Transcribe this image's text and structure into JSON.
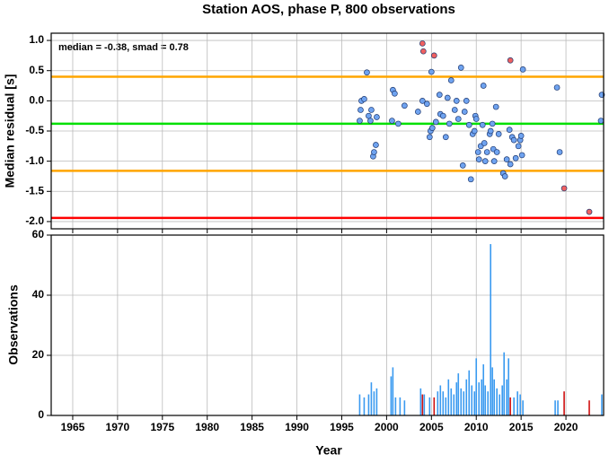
{
  "title": "Station AOS, phase P, 800 observations",
  "chart_data": [
    {
      "type": "scatter",
      "y_label": "Median residual [s]",
      "annotation": "median = -0.38, smad = 0.78",
      "xlim": [
        1962.6,
        2024.2
      ],
      "xticks": [
        1965,
        1970,
        1975,
        1980,
        1985,
        1990,
        1995,
        2000,
        2005,
        2010,
        2015,
        2020
      ],
      "ylim": [
        -2.12,
        1.12
      ],
      "yticks": [
        {
          "value": 1,
          "label": "1.0"
        },
        0.5,
        {
          "value": 0,
          "label": "0.0"
        },
        -0.5,
        {
          "value": -1,
          "label": "-1.0"
        },
        -1.5,
        {
          "value": -2,
          "label": "-2.0"
        }
      ],
      "grid": true,
      "hlines": [
        {
          "value": 0.4,
          "color": "#ffa500"
        },
        {
          "value": -0.38,
          "color": "#00e000"
        },
        {
          "value": -1.16,
          "color": "#ffa500"
        },
        {
          "value": -1.94,
          "color": "#ff0000"
        }
      ],
      "series": [
        {
          "color": "#6fa3f0",
          "x": [
            1997.0,
            1997.1,
            1997.2,
            1997.5,
            1997.8,
            1998.0,
            1998.2,
            1998.3,
            1998.5,
            1998.6,
            1998.8,
            1998.9,
            2000.6,
            2000.7,
            2000.9,
            2001.3,
            2002.0,
            2003.5,
            2004.0,
            2004.5,
            2004.8,
            2004.9,
            2005.0,
            2005.1,
            2005.5,
            2005.9,
            2006.0,
            2006.3,
            2006.6,
            2006.8,
            2007.0,
            2007.2,
            2007.6,
            2007.8,
            2008.0,
            2008.3,
            2008.5,
            2008.7,
            2008.9,
            2009.2,
            2009.4,
            2009.6,
            2009.8,
            2009.9,
            2010.0,
            2010.2,
            2010.3,
            2010.5,
            2010.7,
            2010.8,
            2010.9,
            2011.0,
            2011.2,
            2011.5,
            2011.6,
            2011.8,
            2011.9,
            2012.0,
            2012.2,
            2012.3,
            2012.5,
            2013.0,
            2013.2,
            2013.4,
            2013.7,
            2013.8,
            2014.0,
            2014.2,
            2014.4,
            2014.7,
            2014.9,
            2015.0,
            2015.1,
            2015.2,
            2019.0,
            2019.3,
            2024.0,
            2023.9
          ],
          "values": [
            -0.33,
            -0.15,
            0.0,
            0.03,
            0.47,
            -0.25,
            -0.33,
            -0.15,
            -0.92,
            -0.85,
            -0.73,
            -0.27,
            -0.33,
            0.18,
            0.12,
            -0.38,
            -0.08,
            -0.18,
            0.0,
            -0.05,
            -0.6,
            -0.5,
            0.48,
            -0.45,
            -0.35,
            0.1,
            -0.22,
            -0.25,
            -0.6,
            0.05,
            -0.38,
            0.34,
            -0.15,
            0.0,
            -0.3,
            0.55,
            -1.07,
            -0.18,
            0.0,
            -0.4,
            -1.3,
            -0.55,
            -0.5,
            -0.25,
            -0.3,
            -0.85,
            -0.97,
            -0.75,
            -0.4,
            0.25,
            -0.7,
            -1.0,
            -0.85,
            -0.55,
            -0.5,
            -0.38,
            -0.8,
            -1.0,
            -0.1,
            -0.85,
            -0.55,
            -1.2,
            -1.25,
            -0.97,
            -0.48,
            -1.05,
            -0.6,
            -0.65,
            -0.95,
            -0.75,
            -0.65,
            -0.58,
            -0.9,
            0.52,
            0.22,
            -0.85,
            0.1,
            -0.33
          ]
        },
        {
          "color": "#f06060",
          "x": [
            2004.0,
            2004.1,
            2005.3,
            2013.8,
            2019.8,
            2022.6
          ],
          "values": [
            0.95,
            0.82,
            0.75,
            0.67,
            -1.45,
            -1.84
          ]
        }
      ]
    },
    {
      "type": "bar",
      "x_label": "Year",
      "y_label": "Observations",
      "xlim": [
        1962.6,
        2024.2
      ],
      "xticks": [
        1965,
        1970,
        1975,
        1980,
        1985,
        1990,
        1995,
        2000,
        2005,
        2010,
        2015,
        2020
      ],
      "ylim": [
        0,
        60
      ],
      "yticks": [
        0,
        20,
        40,
        60
      ],
      "grid": true,
      "series": [
        {
          "color": "#3a9af0",
          "x": [
            1997.0,
            1997.5,
            1998.0,
            1998.3,
            1998.6,
            1998.9,
            2000.5,
            2000.7,
            2001.0,
            2001.5,
            2002.0,
            2003.8,
            2004.2,
            2004.8,
            2005.7,
            2006.0,
            2006.3,
            2006.6,
            2006.9,
            2007.2,
            2007.5,
            2007.8,
            2008.0,
            2008.3,
            2008.6,
            2008.9,
            2009.2,
            2009.5,
            2009.8,
            2010.0,
            2010.3,
            2010.6,
            2010.8,
            2011.0,
            2011.3,
            2011.6,
            2011.8,
            2012.0,
            2012.3,
            2012.6,
            2012.9,
            2013.1,
            2013.4,
            2013.6,
            2014.2,
            2014.6,
            2014.9,
            2015.2,
            2018.8,
            2019.1,
            2024.0
          ],
          "values": [
            7,
            6,
            7,
            11,
            8,
            9,
            13,
            16,
            6,
            6,
            5,
            9,
            7,
            6,
            8,
            10,
            8,
            6,
            12,
            9,
            7,
            11,
            14,
            9,
            8,
            12,
            15,
            10,
            8,
            19,
            11,
            12,
            17,
            10,
            8,
            57,
            16,
            12,
            9,
            7,
            10,
            21,
            12,
            19,
            6,
            8,
            7,
            5,
            5,
            5,
            7
          ]
        },
        {
          "color": "#d01010",
          "x": [
            2004.0,
            2005.3,
            2013.8,
            2019.8,
            2022.6
          ],
          "values": [
            7,
            6,
            6,
            8,
            5
          ]
        }
      ]
    }
  ]
}
